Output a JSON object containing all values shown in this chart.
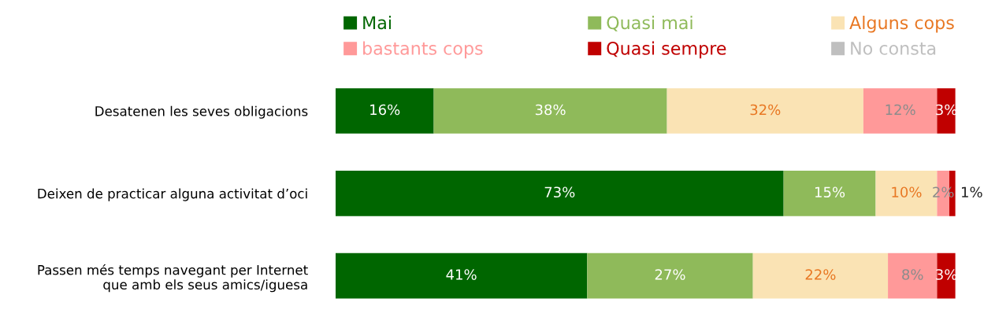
{
  "chart_data": {
    "type": "bar",
    "orientation": "horizontal",
    "stacked": true,
    "legend": "top",
    "grid": false,
    "categories": [
      "Desatenen les seves obligacions",
      "Deixen de practicar alguna activitat d’oci",
      "Passen més temps navegant per Internet\nque amb els seus amics/iguesa"
    ],
    "series": [
      {
        "name": "Mai",
        "color": "#006600",
        "values": [
          16,
          73,
          41
        ],
        "value_labels": [
          "16%",
          "73%",
          "41%"
        ]
      },
      {
        "name": "Quasi mai",
        "color": "#8fba5a",
        "values": [
          38,
          15,
          27
        ],
        "value_labels": [
          "38%",
          "15%",
          "27%"
        ]
      },
      {
        "name": "Alguns cops",
        "color": "#fae3b4",
        "values": [
          32,
          10,
          22
        ],
        "value_labels": [
          "32%",
          "10%",
          "22%"
        ]
      },
      {
        "name": "bastants cops",
        "color": "#ff9999",
        "values": [
          12,
          2,
          8
        ],
        "value_labels": [
          "12%",
          "2%",
          "8%"
        ]
      },
      {
        "name": "Quasi sempre",
        "color": "#c00000",
        "values": [
          3,
          1,
          3
        ],
        "value_labels": [
          "3%",
          "1%",
          "3%"
        ]
      },
      {
        "name": "No consta",
        "color": "#bfbfbf",
        "values": [
          null,
          null,
          null
        ]
      }
    ]
  }
}
